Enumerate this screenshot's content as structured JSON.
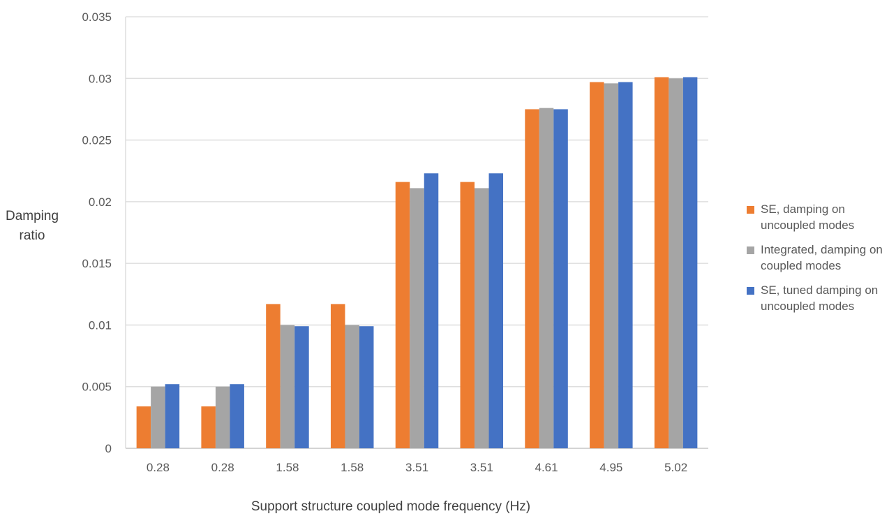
{
  "chart_data": {
    "type": "bar",
    "title": "",
    "xlabel": "Support structure coupled mode frequency (Hz)",
    "ylabel": "Damping ratio",
    "ylim": [
      0,
      0.035
    ],
    "yticks": [
      "0",
      "0.005",
      "0.01",
      "0.015",
      "0.02",
      "0.025",
      "0.03",
      "0.035"
    ],
    "grid": true,
    "legend_position": "right",
    "categories": [
      "0.28",
      "0.28",
      "1.58",
      "1.58",
      "3.51",
      "3.51",
      "4.61",
      "4.95",
      "5.02"
    ],
    "series": [
      {
        "name": "SE, damping on uncoupled modes",
        "color": "#ED7D31",
        "values": [
          0.0034,
          0.0034,
          0.0117,
          0.0117,
          0.0216,
          0.0216,
          0.0275,
          0.0297,
          0.0301
        ]
      },
      {
        "name": "Integrated, damping on coupled modes",
        "color": "#A5A5A5",
        "values": [
          0.005,
          0.005,
          0.01,
          0.01,
          0.0211,
          0.0211,
          0.0276,
          0.0296,
          0.03
        ]
      },
      {
        "name": "SE, tuned damping on uncoupled modes",
        "color": "#4472C4",
        "values": [
          0.0052,
          0.0052,
          0.0099,
          0.0099,
          0.0223,
          0.0223,
          0.0275,
          0.0297,
          0.0301
        ]
      }
    ]
  }
}
